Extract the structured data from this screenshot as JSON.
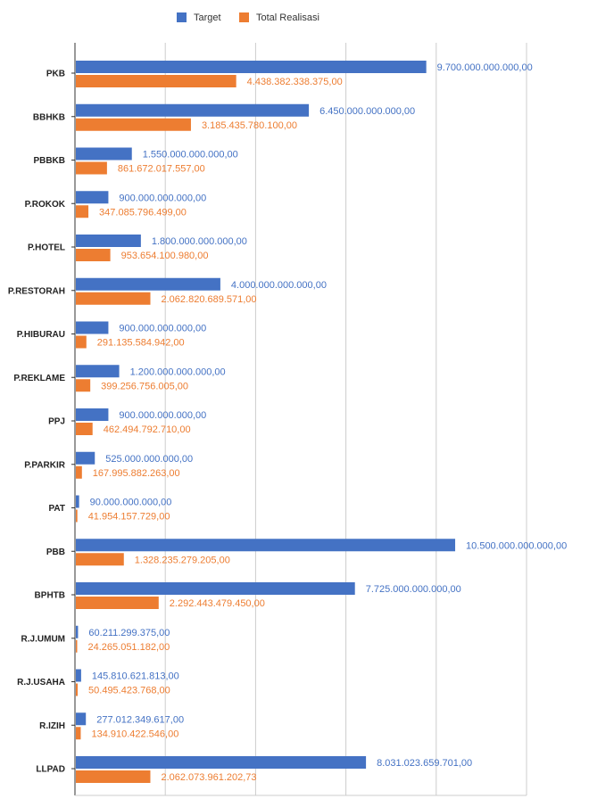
{
  "chart_data": {
    "type": "bar",
    "orientation": "horizontal",
    "categories": [
      "PKB",
      "BBHKB",
      "PBBKB",
      "P.ROKOK",
      "P.HOTEL",
      "P.RESTORAH",
      "P.HIBURAU",
      "P.REKLAME",
      "PPJ",
      "P.PARKIR",
      "PAT",
      "PBB",
      "BPHTB",
      "R.J.UMUM",
      "R.J.USAHA",
      "R.IZIH",
      "LLPAD"
    ],
    "series": [
      {
        "name": "Target",
        "color": "#4472C4",
        "values": [
          9700000000000,
          6450000000000,
          1550000000000,
          900000000000,
          1800000000000,
          4000000000000,
          900000000000,
          1200000000000,
          900000000000,
          525000000000,
          90000000000,
          10500000000000,
          7725000000000,
          60211299375,
          145810621813,
          277012349617,
          8031023659701
        ],
        "labels": [
          "9.700.000.000.000,00",
          "6.450.000.000.000,00",
          "1.550.000.000.000,00",
          "900.000.000.000,00",
          "1.800.000.000.000,00",
          "4.000.000.000.000,00",
          "900.000.000.000,00",
          "1.200.000.000.000,00",
          "900.000.000.000,00",
          "525.000.000.000,00",
          "90.000.000.000,00",
          "10.500.000.000.000,00",
          "7.725.000.000.000,00",
          "60.211.299.375,00",
          "145.810.621.813,00",
          "277.012.349.617,00",
          "8.031.023.659.701,00"
        ]
      },
      {
        "name": "Total Realisasi",
        "color": "#ED7D31",
        "values": [
          4438382338375,
          3185435780100,
          861672017557,
          347085796499,
          953654100980,
          2062820689571,
          291135584942,
          399256756005,
          462494792710,
          167995882263,
          41954157729,
          1328235279205,
          2292443479450,
          24265051182,
          50495423768,
          134910422546,
          2062073961202.73
        ],
        "labels": [
          "4.438.382.338.375,00",
          "3.185.435.780.100,00",
          "861.672.017.557,00",
          "347.085.796.499,00",
          "953.654.100.980,00",
          "2.062.820.689.571,00",
          "291.135.584.942,00",
          "399.256.756.005,00",
          "462.494.792.710,00",
          "167.995.882.263,00",
          "41.954.157.729,00",
          "1.328.235.279.205,00",
          "2.292.443.479.450,00",
          "24.265.051.182,00",
          "50.495.423.768,00",
          "134.910.422.546,00",
          "2.062.073.961.202,73"
        ]
      }
    ],
    "xlim": [
      0,
      12500000000000
    ],
    "grid": true,
    "legend_position": "top",
    "title": "",
    "xlabel": "",
    "ylabel": ""
  }
}
